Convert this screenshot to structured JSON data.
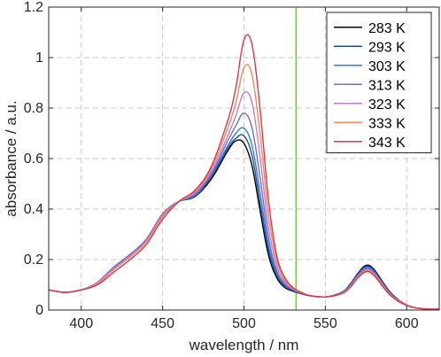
{
  "chart_data": {
    "type": "line",
    "xlabel": "wavelength / nm",
    "ylabel": "absorbance / a.u.",
    "xlim": [
      380,
      620
    ],
    "ylim": [
      0,
      1.2
    ],
    "xticks": [
      400,
      450,
      500,
      550,
      600
    ],
    "xtick_labels": [
      "400",
      "450",
      "500",
      "550",
      "600"
    ],
    "yticks": [
      0,
      0.2,
      0.4,
      0.6,
      0.8,
      1,
      1.2
    ],
    "ytick_labels": [
      "0",
      "0.2",
      "0.4",
      "0.6",
      "0.8",
      "1",
      "1.2"
    ],
    "grid": true,
    "legend_position": "top-right",
    "reference_line": {
      "x": 532,
      "color": "#7ac943"
    },
    "x": [
      380,
      390,
      400,
      410,
      420,
      430,
      440,
      450,
      460,
      470,
      480,
      490,
      495,
      500,
      505,
      510,
      515,
      520,
      525,
      530,
      535,
      540,
      550,
      560,
      565,
      570,
      575,
      580,
      590,
      600,
      610,
      620
    ],
    "series": [
      {
        "name": "283 K",
        "color": "#000000",
        "values": [
          0.08,
          0.07,
          0.08,
          0.11,
          0.17,
          0.22,
          0.28,
          0.38,
          0.43,
          0.45,
          0.52,
          0.63,
          0.67,
          0.66,
          0.57,
          0.39,
          0.22,
          0.13,
          0.09,
          0.075,
          0.065,
          0.057,
          0.052,
          0.07,
          0.1,
          0.145,
          0.177,
          0.16,
          0.07,
          0.02,
          0.005,
          0.003
        ]
      },
      {
        "name": "293 K",
        "color": "#1f4e9c",
        "values": [
          0.08,
          0.07,
          0.08,
          0.11,
          0.17,
          0.22,
          0.28,
          0.38,
          0.43,
          0.45,
          0.53,
          0.64,
          0.68,
          0.69,
          0.61,
          0.42,
          0.24,
          0.14,
          0.095,
          0.078,
          0.066,
          0.058,
          0.052,
          0.07,
          0.098,
          0.142,
          0.172,
          0.156,
          0.068,
          0.02,
          0.005,
          0.003
        ]
      },
      {
        "name": "303 K",
        "color": "#2d7fd6",
        "values": [
          0.08,
          0.07,
          0.08,
          0.11,
          0.17,
          0.22,
          0.28,
          0.38,
          0.43,
          0.455,
          0.535,
          0.65,
          0.7,
          0.72,
          0.65,
          0.46,
          0.26,
          0.15,
          0.1,
          0.08,
          0.067,
          0.058,
          0.052,
          0.069,
          0.096,
          0.139,
          0.168,
          0.152,
          0.066,
          0.02,
          0.005,
          0.003
        ]
      },
      {
        "name": "313 K",
        "color": "#7a68c7",
        "values": [
          0.08,
          0.07,
          0.08,
          0.11,
          0.17,
          0.22,
          0.28,
          0.38,
          0.43,
          0.46,
          0.54,
          0.67,
          0.73,
          0.78,
          0.72,
          0.52,
          0.29,
          0.16,
          0.105,
          0.082,
          0.068,
          0.058,
          0.052,
          0.068,
          0.094,
          0.136,
          0.164,
          0.148,
          0.064,
          0.02,
          0.005,
          0.003
        ]
      },
      {
        "name": "323 K",
        "color": "#c27fcf",
        "values": [
          0.08,
          0.07,
          0.08,
          0.11,
          0.165,
          0.215,
          0.275,
          0.375,
          0.43,
          0.465,
          0.55,
          0.69,
          0.77,
          0.86,
          0.82,
          0.6,
          0.33,
          0.18,
          0.112,
          0.085,
          0.069,
          0.058,
          0.052,
          0.067,
          0.092,
          0.133,
          0.16,
          0.144,
          0.062,
          0.019,
          0.005,
          0.003
        ]
      },
      {
        "name": "333 K",
        "color": "#f0885e",
        "values": [
          0.08,
          0.07,
          0.08,
          0.105,
          0.16,
          0.21,
          0.27,
          0.37,
          0.43,
          0.47,
          0.56,
          0.72,
          0.82,
          0.96,
          0.93,
          0.69,
          0.38,
          0.2,
          0.12,
          0.088,
          0.07,
          0.058,
          0.052,
          0.066,
          0.09,
          0.13,
          0.156,
          0.14,
          0.06,
          0.019,
          0.005,
          0.003
        ]
      },
      {
        "name": "343 K",
        "color": "#e0344a",
        "values": [
          0.08,
          0.07,
          0.08,
          0.1,
          0.15,
          0.2,
          0.26,
          0.36,
          0.43,
          0.475,
          0.57,
          0.75,
          0.88,
          1.07,
          1.05,
          0.79,
          0.44,
          0.22,
          0.13,
          0.09,
          0.071,
          0.058,
          0.052,
          0.065,
          0.088,
          0.127,
          0.152,
          0.136,
          0.058,
          0.018,
          0.005,
          0.003
        ]
      }
    ]
  }
}
